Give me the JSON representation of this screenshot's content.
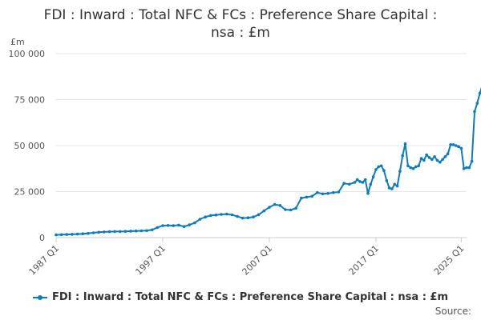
{
  "chart_data": {
    "type": "line",
    "title_lines": [
      "FDI : Inward : Total NFC & FCs : Preference Share Capital :",
      "nsa : £m"
    ],
    "ylabel": "£m",
    "xlabel": "",
    "ylim": [
      0,
      100000
    ],
    "yticks": [
      0,
      25000,
      50000,
      75000,
      100000
    ],
    "ytick_labels": [
      "0",
      "25 000",
      "50 000",
      "75 000",
      "100 000"
    ],
    "xticks": [
      1987,
      1997,
      2007,
      2017,
      2025
    ],
    "xtick_labels": [
      "1987 Q1",
      "1997 Q1",
      "2007 Q1",
      "2017 Q1",
      "2025 Q1"
    ],
    "xlim": [
      1987,
      2025.5
    ],
    "grid": true,
    "legend_position": "bottom",
    "color": "#0f7bbd",
    "series": [
      {
        "name": "FDI : Inward : Total NFC & FCs : Preference Share Capital : nsa : £m",
        "points": [
          [
            1987.0,
            1500
          ],
          [
            1987.5,
            1600
          ],
          [
            1988.0,
            1700
          ],
          [
            1988.5,
            1800
          ],
          [
            1989.0,
            1900
          ],
          [
            1989.5,
            2100
          ],
          [
            1990.0,
            2300
          ],
          [
            1990.5,
            2600
          ],
          [
            1991.0,
            2900
          ],
          [
            1991.5,
            3100
          ],
          [
            1992.0,
            3200
          ],
          [
            1992.5,
            3300
          ],
          [
            1993.0,
            3300
          ],
          [
            1993.5,
            3400
          ],
          [
            1994.0,
            3500
          ],
          [
            1994.5,
            3600
          ],
          [
            1995.0,
            3700
          ],
          [
            1995.5,
            3800
          ],
          [
            1996.0,
            4200
          ],
          [
            1996.5,
            5500
          ],
          [
            1997.0,
            6500
          ],
          [
            1997.5,
            6600
          ],
          [
            1998.0,
            6500
          ],
          [
            1998.5,
            6800
          ],
          [
            1999.0,
            6000
          ],
          [
            1999.5,
            6900
          ],
          [
            2000.0,
            8000
          ],
          [
            2000.5,
            10000
          ],
          [
            2001.0,
            11200
          ],
          [
            2001.5,
            12000
          ],
          [
            2002.0,
            12300
          ],
          [
            2002.5,
            12600
          ],
          [
            2003.0,
            12800
          ],
          [
            2003.5,
            12400
          ],
          [
            2004.0,
            11500
          ],
          [
            2004.5,
            10600
          ],
          [
            2005.0,
            10800
          ],
          [
            2005.5,
            11200
          ],
          [
            2006.0,
            12500
          ],
          [
            2006.5,
            14500
          ],
          [
            2007.0,
            16500
          ],
          [
            2007.5,
            18000
          ],
          [
            2008.0,
            17500
          ],
          [
            2008.5,
            15200
          ],
          [
            2009.0,
            15000
          ],
          [
            2009.5,
            16000
          ],
          [
            2010.0,
            21500
          ],
          [
            2010.5,
            22000
          ],
          [
            2011.0,
            22500
          ],
          [
            2011.5,
            24500
          ],
          [
            2012.0,
            23800
          ],
          [
            2012.5,
            24000
          ],
          [
            2013.0,
            24500
          ],
          [
            2013.5,
            24800
          ],
          [
            2014.0,
            29500
          ],
          [
            2014.5,
            29000
          ],
          [
            2015.0,
            30000
          ],
          [
            2015.25,
            31500
          ],
          [
            2015.5,
            30500
          ],
          [
            2015.75,
            30000
          ],
          [
            2016.0,
            31500
          ],
          [
            2016.25,
            24000
          ],
          [
            2016.5,
            29000
          ],
          [
            2016.75,
            33000
          ],
          [
            2017.0,
            37000
          ],
          [
            2017.25,
            38500
          ],
          [
            2017.5,
            39000
          ],
          [
            2017.75,
            36500
          ],
          [
            2018.0,
            31000
          ],
          [
            2018.25,
            27000
          ],
          [
            2018.5,
            26500
          ],
          [
            2018.75,
            29000
          ],
          [
            2019.0,
            28000
          ],
          [
            2019.25,
            36000
          ],
          [
            2019.5,
            44500
          ],
          [
            2019.75,
            51000
          ],
          [
            2020.0,
            39000
          ],
          [
            2020.25,
            38000
          ],
          [
            2020.5,
            37500
          ],
          [
            2020.75,
            38500
          ],
          [
            2021.0,
            39000
          ],
          [
            2021.25,
            43000
          ],
          [
            2021.5,
            42000
          ],
          [
            2021.75,
            45000
          ],
          [
            2022.0,
            43500
          ],
          [
            2022.25,
            42500
          ],
          [
            2022.5,
            44000
          ],
          [
            2022.75,
            42000
          ],
          [
            2023.0,
            41000
          ],
          [
            2023.25,
            42500
          ],
          [
            2023.5,
            44000
          ],
          [
            2023.75,
            45500
          ],
          [
            2024.0,
            50500
          ],
          [
            2024.25,
            50500
          ],
          [
            2024.5,
            50000
          ],
          [
            2024.75,
            49500
          ],
          [
            2025.0,
            48500
          ],
          [
            2025.25,
            37500
          ],
          [
            2025.5,
            38000
          ],
          [
            2025.75,
            38000
          ],
          [
            2026.0,
            41500
          ],
          [
            2026.25,
            68500
          ],
          [
            2026.5,
            73000
          ],
          [
            2026.75,
            78500
          ],
          [
            2027.0,
            83000
          ],
          [
            2027.25,
            70000
          ],
          [
            2027.5,
            71000
          ],
          [
            2027.75,
            68000
          ],
          [
            2028.0,
            83000
          ],
          [
            2028.25,
            85000
          ]
        ]
      }
    ]
  },
  "source_label": "Source:"
}
